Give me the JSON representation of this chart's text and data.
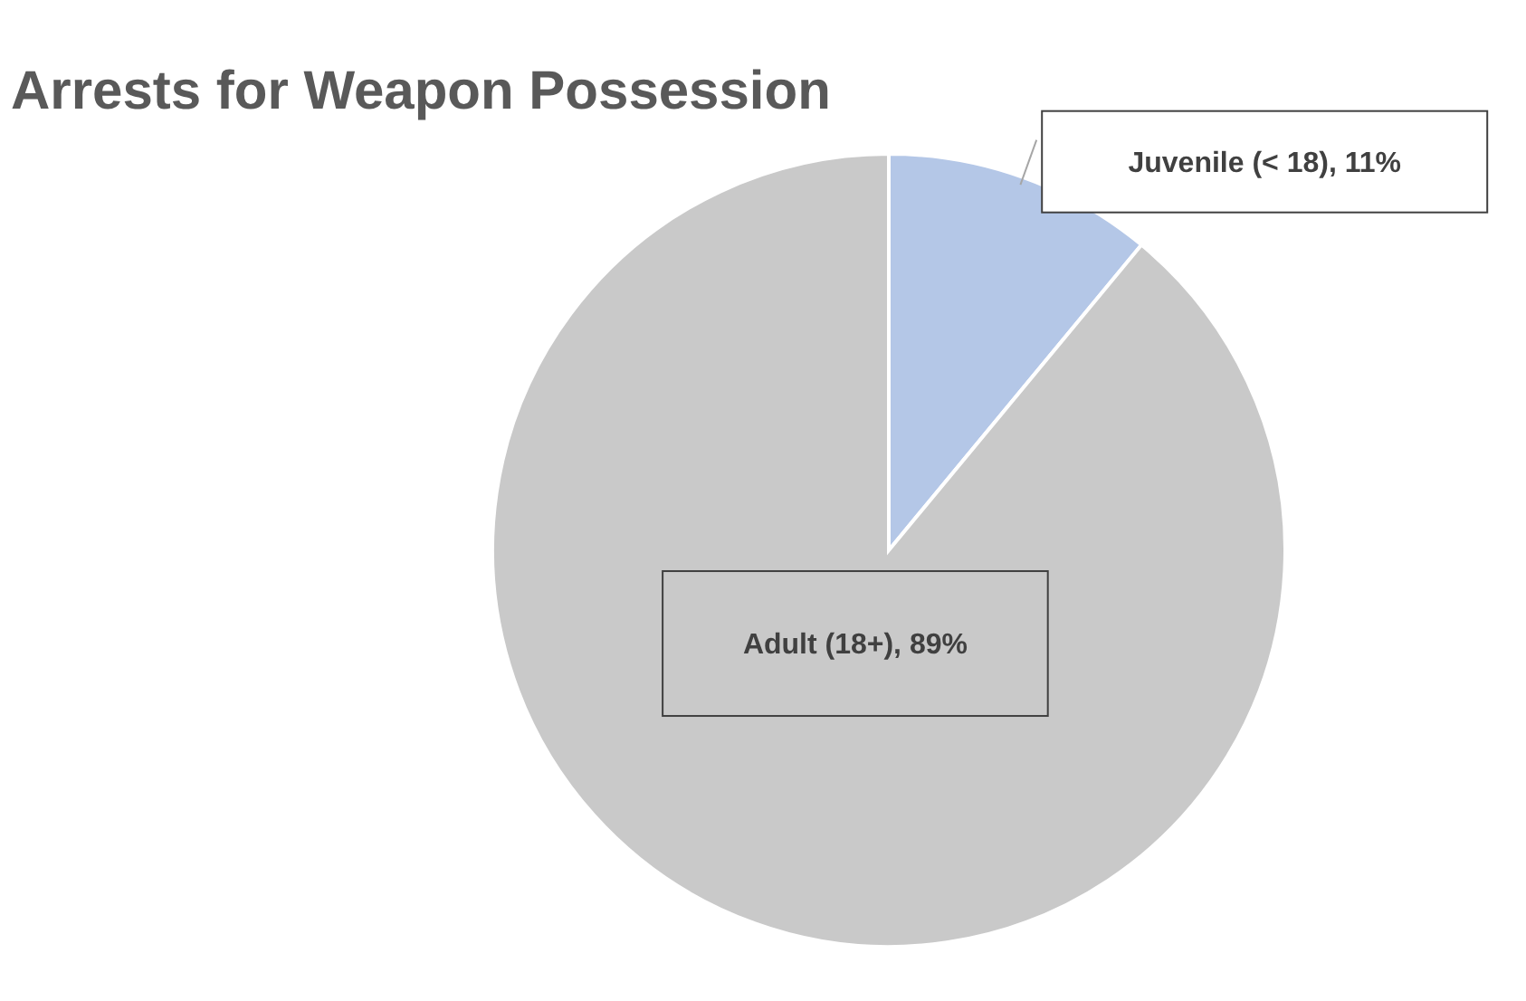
{
  "chart_data": {
    "type": "pie",
    "title": "Arrests for Weapon Possession",
    "categories": [
      "Juvenile (< 18)",
      "Adult (18+)"
    ],
    "values": [
      11,
      89
    ],
    "value_labels": [
      "11%",
      "89%"
    ],
    "colors": [
      "#b4c7e7",
      "#c9c9c9"
    ]
  }
}
